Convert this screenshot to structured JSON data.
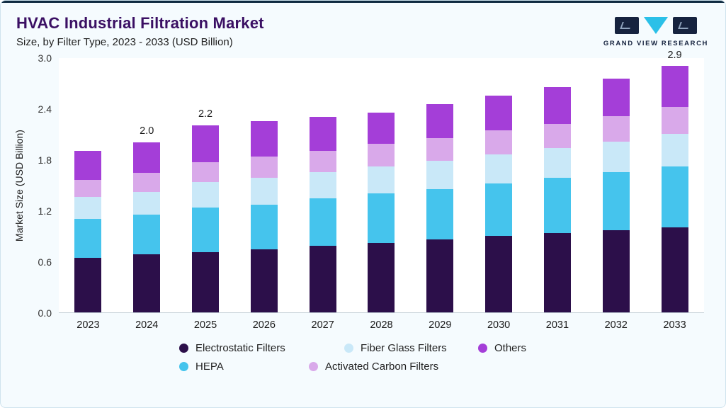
{
  "header": {
    "title": "HVAC Industrial Filtration Market",
    "subtitle": "Size, by Filter Type, 2023 - 2033 (USD Billion)"
  },
  "logo": {
    "caption": "GRAND VIEW RESEARCH",
    "brand_navy": "#16233f",
    "brand_cyan": "#2bc0e8"
  },
  "chart_data": {
    "type": "bar",
    "stacked": true,
    "title": "HVAC Industrial Filtration Market",
    "subtitle": "Size, by Filter Type, 2023 - 2033 (USD Billion)",
    "xlabel": "",
    "ylabel": "Market Size (USD Billion)",
    "ylim": [
      0,
      3.0
    ],
    "yticks": [
      "0.0",
      "0.6",
      "1.2",
      "1.8",
      "2.4",
      "3.0"
    ],
    "grid": false,
    "legend_position": "bottom",
    "categories": [
      "2023",
      "2024",
      "2025",
      "2026",
      "2027",
      "2028",
      "2029",
      "2030",
      "2031",
      "2032",
      "2033"
    ],
    "series": [
      {
        "name": "Electrostatic Filters",
        "color": "#2c0f4a",
        "values": [
          0.64,
          0.68,
          0.71,
          0.74,
          0.78,
          0.82,
          0.86,
          0.9,
          0.93,
          0.97,
          1.0
        ]
      },
      {
        "name": "HEPA",
        "color": "#45c4ed",
        "values": [
          0.46,
          0.47,
          0.52,
          0.53,
          0.56,
          0.58,
          0.59,
          0.62,
          0.65,
          0.68,
          0.72
        ]
      },
      {
        "name": "Fiber Glass Filters",
        "color": "#c9e8f8",
        "values": [
          0.26,
          0.27,
          0.3,
          0.31,
          0.31,
          0.32,
          0.33,
          0.34,
          0.35,
          0.36,
          0.38
        ]
      },
      {
        "name": "Activated Carbon Filters",
        "color": "#d9a9ea",
        "values": [
          0.2,
          0.22,
          0.24,
          0.25,
          0.25,
          0.26,
          0.27,
          0.28,
          0.29,
          0.3,
          0.32
        ]
      },
      {
        "name": "Others",
        "color": "#a43ed8",
        "values": [
          0.34,
          0.36,
          0.43,
          0.42,
          0.4,
          0.37,
          0.4,
          0.41,
          0.43,
          0.44,
          0.48
        ]
      }
    ],
    "totals": [
      1.9,
      2.0,
      2.2,
      2.25,
      2.3,
      2.35,
      2.45,
      2.55,
      2.65,
      2.75,
      2.9
    ],
    "bar_labels": [
      "",
      "2.0",
      "2.2",
      "",
      "",
      "",
      "",
      "",
      "",
      "",
      "2.9"
    ]
  },
  "legend": {
    "rows": [
      [
        {
          "label": "Electrostatic Filters",
          "color": "#2c0f4a"
        },
        {
          "label": "Fiber Glass Filters",
          "color": "#c9e8f8"
        },
        {
          "label": "Others",
          "color": "#a43ed8"
        }
      ],
      [
        {
          "label": "HEPA",
          "color": "#45c4ed"
        },
        {
          "label": "Activated Carbon Filters",
          "color": "#d9a9ea"
        }
      ]
    ]
  }
}
